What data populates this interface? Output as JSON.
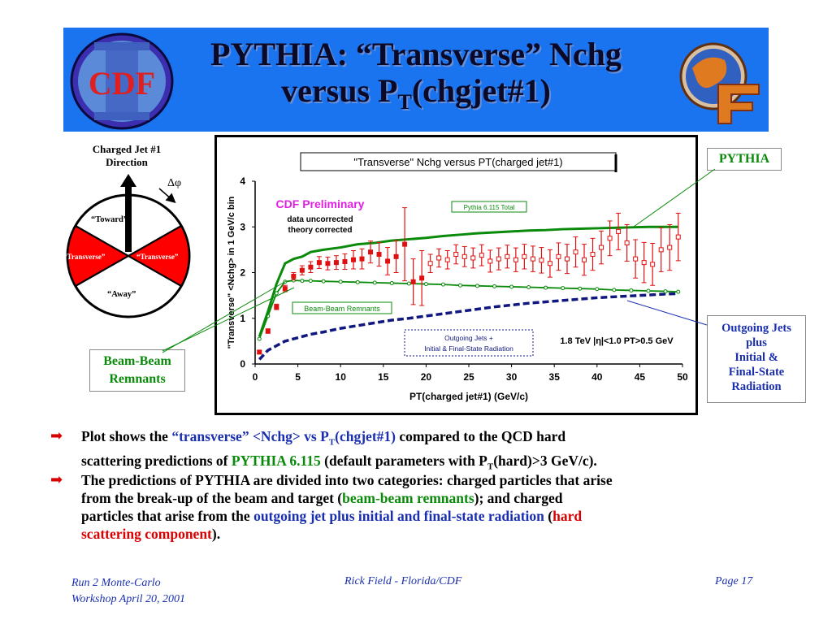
{
  "slide": {
    "title_line1": "PYTHIA: “Transverse” Nchg",
    "title_line2_main": "versus P",
    "title_line2_sub": "T",
    "title_line2_end": "(chgjet#1)",
    "cdf_logo_text": "CDF",
    "wedge": {
      "caption_line1": "Charged Jet #1",
      "caption_line2": "Direction",
      "dphi": "Δφ",
      "toward": "“Toward”",
      "away": "“Away”",
      "transverse_left": "“Transverse”",
      "transverse_right": "“Transverse”"
    },
    "callouts": {
      "pythia": "PYTHIA",
      "outgoing_line1": "Outgoing Jets",
      "outgoing_line2": "plus",
      "outgoing_line3": "Initial &",
      "outgoing_line4": "Final-State",
      "outgoing_line5": "Radiation",
      "bbr_line1": "Beam-Beam",
      "bbr_line2": "Remnants"
    },
    "bullets": {
      "b1_a": "Plot shows the ",
      "b1_b": "“transverse” <Nchg> vs P",
      "b1_b_sub": "T",
      "b1_c": "(chgjet#1)",
      "b1_d": " compared to the QCD hard",
      "b1_e": "scattering predictions of ",
      "b1_f": "PYTHIA 6.115",
      "b1_g": " (default parameters with P",
      "b1_g_sub": "T",
      "b1_h": "(hard)>3 GeV/c).",
      "b2_a": "The predictions of PYTHIA are divided into two categories: charged particles that arise",
      "b2_b": "from the break-up of the beam and target (",
      "b2_c": "beam-beam remnants",
      "b2_d": "); and charged",
      "b2_e": "particles that arise from the ",
      "b2_f": "outgoing jet plus initial and final-state radiation",
      "b2_g": " (",
      "b2_h": "hard",
      "b2_i": "scattering component",
      "b2_j": ")."
    },
    "footer": {
      "left_line1": "Run 2 Monte-Carlo",
      "left_line2": "Workshop April 20, 2001",
      "center": "Rick Field - Florida/CDF",
      "right": "Page 17"
    }
  },
  "colors": {
    "banner": "#1a74f0",
    "data_red": "#e01010",
    "pythia_green": "#0a8a0a",
    "hard_navy": "#101880",
    "preliminary_magenta": "#e020e0"
  },
  "chart_data": {
    "type": "scatter",
    "title": "\"Transverse\" Nchg versus PT(charged jet#1)",
    "xlabel": "PT(charged jet#1)  (GeV/c)",
    "ylabel": "\"Transverse\" <Nchg> in 1 GeV/c bin",
    "xlim": [
      0,
      50
    ],
    "ylim": [
      0,
      4
    ],
    "xticks": [
      0,
      5,
      10,
      15,
      20,
      25,
      30,
      35,
      40,
      45,
      50
    ],
    "yticks": [
      0,
      1,
      2,
      3,
      4
    ],
    "annotations": {
      "preliminary": "CDF Preliminary",
      "uncorrected": "data uncorrected",
      "corrected": "theory corrected",
      "cuts": "1.8 TeV |η|<1.0 PT>0.5 GeV",
      "pythia_total": "Pythia 6.115 Total",
      "bbr": "Beam-Beam Remnants",
      "outgoing_line1": "Outgoing Jets +",
      "outgoing_line2": "Initial & Final-State Radiation"
    },
    "series": [
      {
        "name": "CDF data (filled)",
        "x": [
          0.5,
          1.5,
          2.5,
          3.5,
          4.5,
          5.5,
          6.5,
          7.5,
          8.5,
          9.5,
          10.5,
          11.5,
          12.5,
          13.5,
          14.5,
          15.5,
          16.5,
          17.5,
          18.5,
          19.5
        ],
        "y": [
          0.26,
          0.72,
          1.25,
          1.65,
          1.92,
          2.05,
          2.12,
          2.22,
          2.2,
          2.22,
          2.24,
          2.28,
          2.3,
          2.45,
          2.4,
          2.25,
          2.35,
          2.62,
          1.8,
          1.88
        ],
        "err": [
          0.03,
          0.05,
          0.06,
          0.07,
          0.08,
          0.1,
          0.12,
          0.13,
          0.14,
          0.15,
          0.17,
          0.2,
          0.22,
          0.24,
          0.26,
          0.3,
          0.35,
          0.8,
          0.5,
          0.6
        ]
      },
      {
        "name": "CDF data (open)",
        "x": [
          20.5,
          21.5,
          22.5,
          23.5,
          24.5,
          25.5,
          26.5,
          27.5,
          28.5,
          29.5,
          30.5,
          31.5,
          32.5,
          33.5,
          34.5,
          35.5,
          36.5,
          37.5,
          38.5,
          39.5,
          40.5,
          41.5,
          42.5,
          43.5,
          44.5,
          45.5,
          46.5,
          47.5,
          48.5,
          49.5
        ],
        "y": [
          2.2,
          2.32,
          2.28,
          2.4,
          2.35,
          2.32,
          2.38,
          2.25,
          2.3,
          2.35,
          2.28,
          2.35,
          2.3,
          2.27,
          2.2,
          2.35,
          2.3,
          2.45,
          2.28,
          2.4,
          2.55,
          2.75,
          2.9,
          2.65,
          2.3,
          2.22,
          2.18,
          2.5,
          2.55,
          2.78
        ],
        "err": [
          0.2,
          0.2,
          0.2,
          0.21,
          0.22,
          0.22,
          0.23,
          0.24,
          0.24,
          0.25,
          0.26,
          0.27,
          0.28,
          0.28,
          0.3,
          0.3,
          0.32,
          0.33,
          0.34,
          0.35,
          0.36,
          0.38,
          0.4,
          0.4,
          0.42,
          0.44,
          0.46,
          0.48,
          0.5,
          0.52
        ]
      },
      {
        "name": "Pythia 6.115 Total",
        "x": [
          0.5,
          1.5,
          2.5,
          3.5,
          4.5,
          5.5,
          6.5,
          8,
          10,
          12,
          14,
          16,
          18,
          20,
          22,
          24,
          26,
          28,
          30,
          32,
          34,
          36,
          38,
          40,
          42,
          44,
          46,
          48,
          49.5
        ],
        "y": [
          0.6,
          1.15,
          1.75,
          2.2,
          2.3,
          2.35,
          2.45,
          2.5,
          2.55,
          2.62,
          2.65,
          2.7,
          2.73,
          2.76,
          2.8,
          2.83,
          2.86,
          2.88,
          2.9,
          2.92,
          2.93,
          2.95,
          2.96,
          2.97,
          2.98,
          2.99,
          3.0,
          3.0,
          3.0
        ]
      },
      {
        "name": "Beam-Beam Remnants",
        "x": [
          0.5,
          1.5,
          2.5,
          3.5,
          4.5,
          5.5,
          6.5,
          8,
          10,
          12,
          14,
          16,
          18,
          20,
          22,
          24,
          26,
          28,
          30,
          32,
          34,
          36,
          38,
          40,
          42,
          44,
          46,
          48,
          49.5
        ],
        "y": [
          0.55,
          1.05,
          1.55,
          1.8,
          1.83,
          1.82,
          1.82,
          1.81,
          1.8,
          1.79,
          1.78,
          1.77,
          1.76,
          1.75,
          1.74,
          1.72,
          1.71,
          1.7,
          1.69,
          1.68,
          1.67,
          1.66,
          1.65,
          1.64,
          1.62,
          1.61,
          1.6,
          1.59,
          1.58
        ]
      },
      {
        "name": "Outgoing Jets + Initial & Final-State Radiation",
        "x": [
          0.5,
          1.5,
          2.5,
          3.5,
          4.5,
          5.5,
          6.5,
          8,
          10,
          12,
          14,
          16,
          18,
          20,
          22,
          24,
          26,
          28,
          30,
          32,
          34,
          36,
          38,
          40,
          42,
          44,
          46,
          48,
          49.5
        ],
        "y": [
          0.1,
          0.3,
          0.4,
          0.5,
          0.55,
          0.6,
          0.65,
          0.7,
          0.78,
          0.84,
          0.9,
          0.96,
          1.0,
          1.05,
          1.1,
          1.15,
          1.2,
          1.25,
          1.29,
          1.33,
          1.36,
          1.39,
          1.42,
          1.45,
          1.47,
          1.49,
          1.51,
          1.53,
          1.54
        ]
      }
    ]
  }
}
